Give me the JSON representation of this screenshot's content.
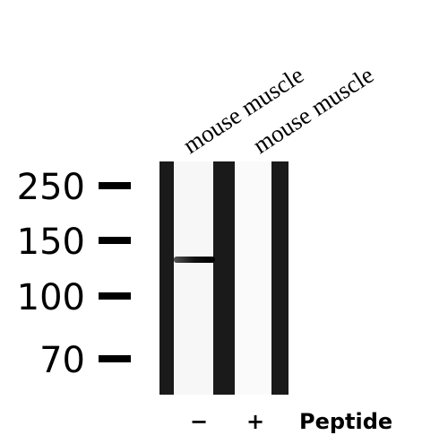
{
  "lanes": [
    {
      "label": "mouse muscle",
      "peptide": "−"
    },
    {
      "label": "mouse muscle",
      "peptide": "+"
    }
  ],
  "markers": [
    "250",
    "150",
    "100",
    "70"
  ],
  "peptide_label": "Peptide"
}
